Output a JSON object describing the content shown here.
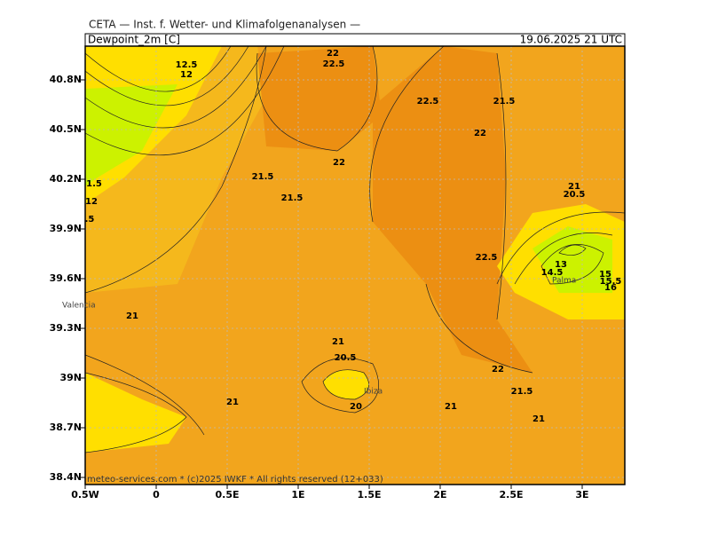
{
  "header": {
    "title": "CETA — Inst. f. Wetter- und Klimafolgenanalysen —",
    "field": "Dewpoint_2m [C]",
    "time": "19.06.2025 21 UTC"
  },
  "map": {
    "xticks": [
      {
        "value": -0.5,
        "label": "0.5W"
      },
      0,
      {
        "value": 0.5,
        "label": "0.5E"
      },
      {
        "value": 1,
        "label": "1E"
      },
      {
        "value": 1.5,
        "label": "1.5E"
      },
      {
        "value": 2,
        "label": "2E"
      },
      {
        "value": 2.5,
        "label": "2.5E"
      },
      {
        "value": 3,
        "label": "3E"
      }
    ],
    "yticks": [
      {
        "value": 38.4,
        "label": "38.4N"
      },
      {
        "value": 38.7,
        "label": "38.7N"
      },
      {
        "value": 39,
        "label": "39N"
      },
      {
        "value": 39.3,
        "label": "39.3N"
      },
      {
        "value": 39.6,
        "label": "39.6N"
      },
      {
        "value": 39.9,
        "label": "39.9N"
      },
      {
        "value": 40.2,
        "label": "40.2N"
      },
      {
        "value": 40.5,
        "label": "40.5N"
      },
      {
        "value": 40.8,
        "label": "40.8N"
      }
    ],
    "contour_labels": [
      12.5,
      12,
      22,
      22.5,
      22.5,
      21.5,
      22,
      22,
      21.5,
      21.5,
      1.5,
      12,
      ".5",
      22.5,
      21,
      21,
      20.5,
      20,
      21,
      21,
      22,
      21.5,
      21,
      21,
      20.5,
      15,
      15.5,
      16,
      13,
      14.5
    ],
    "places": [
      "Valencia",
      "Ibiza",
      "Palma"
    ],
    "footer": "meteo-services.com * (c)2025 IWKF * All rights reserved (12+033)"
  }
}
